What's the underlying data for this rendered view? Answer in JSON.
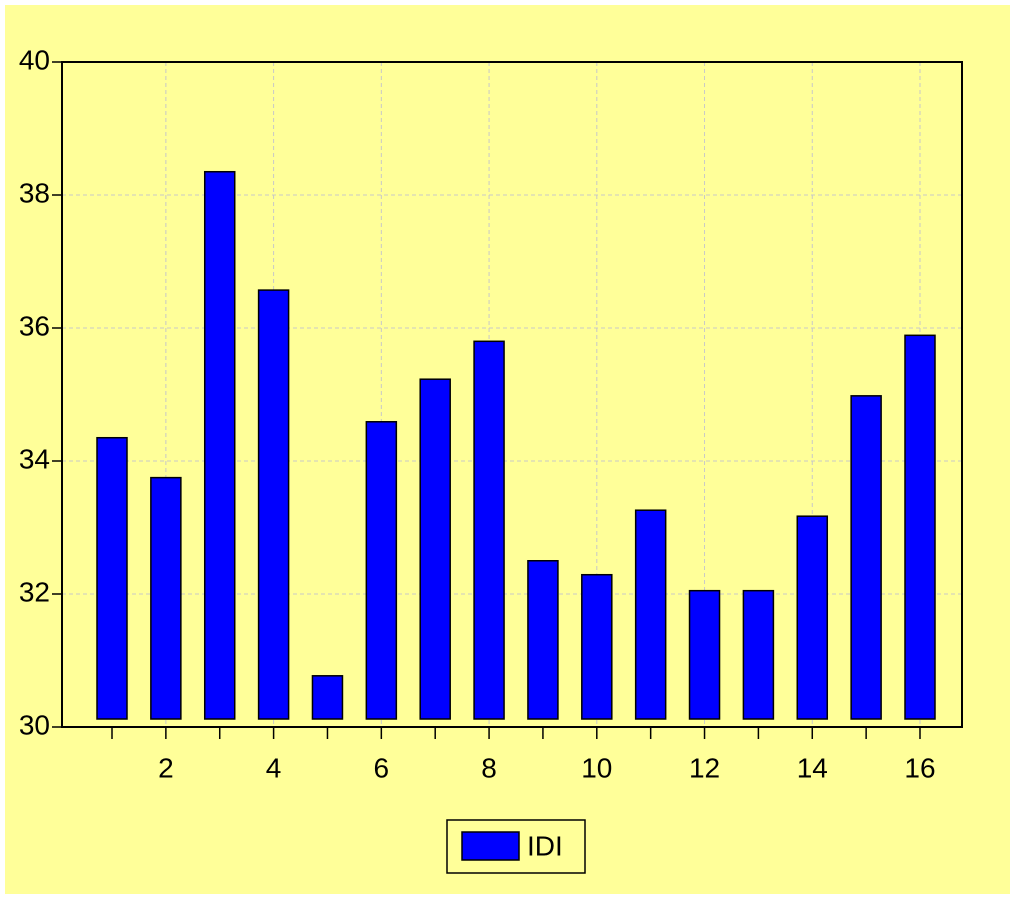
{
  "chart_data": {
    "type": "bar",
    "categories": [
      null,
      "2",
      null,
      "4",
      null,
      "6",
      null,
      "8",
      null,
      "10",
      null,
      "12",
      null,
      "14",
      null,
      "16"
    ],
    "series": [
      {
        "name": "IDI",
        "color": "#0000ff",
        "values": [
          34.35,
          33.75,
          38.35,
          36.57,
          30.77,
          34.59,
          35.23,
          35.8,
          32.5,
          32.29,
          33.26,
          32.05,
          32.05,
          33.17,
          34.98,
          35.89
        ]
      }
    ],
    "ylim": [
      30,
      40
    ],
    "yticks": [
      30,
      32,
      34,
      36,
      38,
      40
    ],
    "grid": true,
    "legend": "bottom"
  }
}
